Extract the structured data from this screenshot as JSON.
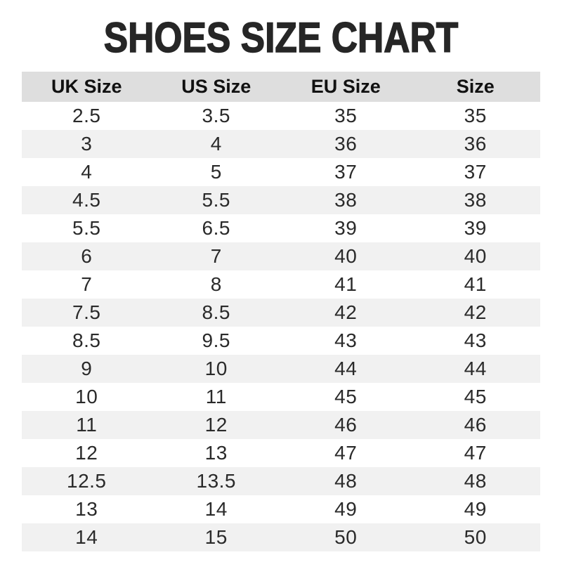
{
  "title": "SHOES SIZE CHART",
  "colors": {
    "header_bg": "#dedede",
    "stripe_bg": "#f1f1f1",
    "text": "#2a2a2a",
    "title_text": "#262626"
  },
  "chart_data": {
    "type": "table",
    "title": "SHOES SIZE CHART",
    "columns": [
      "UK Size",
      "US Size",
      "EU Size",
      "Size"
    ],
    "rows": [
      [
        "2.5",
        "3.5",
        "35",
        "35"
      ],
      [
        "3",
        "4",
        "36",
        "36"
      ],
      [
        "4",
        "5",
        "37",
        "37"
      ],
      [
        "4.5",
        "5.5",
        "38",
        "38"
      ],
      [
        "5.5",
        "6.5",
        "39",
        "39"
      ],
      [
        "6",
        "7",
        "40",
        "40"
      ],
      [
        "7",
        "8",
        "41",
        "41"
      ],
      [
        "7.5",
        "8.5",
        "42",
        "42"
      ],
      [
        "8.5",
        "9.5",
        "43",
        "43"
      ],
      [
        "9",
        "10",
        "44",
        "44"
      ],
      [
        "10",
        "11",
        "45",
        "45"
      ],
      [
        "11",
        "12",
        "46",
        "46"
      ],
      [
        "12",
        "13",
        "47",
        "47"
      ],
      [
        "12.5",
        "13.5",
        "48",
        "48"
      ],
      [
        "13",
        "14",
        "49",
        "49"
      ],
      [
        "14",
        "15",
        "50",
        "50"
      ]
    ],
    "layout": {
      "striped_rows": true,
      "header_background": "#dedede",
      "stripe_background": "#f1f1f1",
      "grid": false
    }
  }
}
